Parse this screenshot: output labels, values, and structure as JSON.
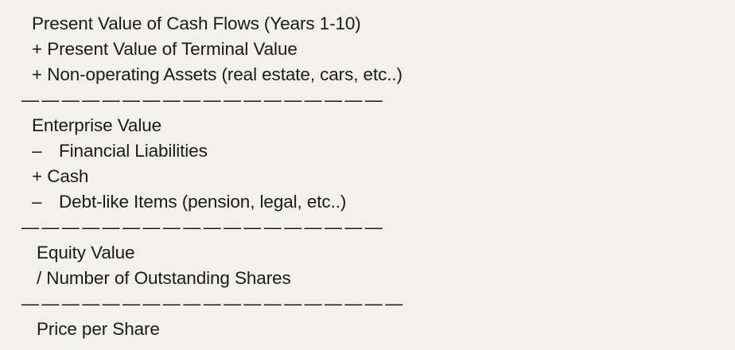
{
  "section1": {
    "line1": "Present Value of Cash Flows (Years 1-10)",
    "line2": "+ Present Value of Terminal Value",
    "line3": "+ Non-operating Assets (real estate, cars, etc..)"
  },
  "separator1": "——————————————————",
  "section2": {
    "line1": "Enterprise Value",
    "line2_op": "–",
    "line2_text": "Financial Liabilities",
    "line3": "+ Cash",
    "line4_op": "–",
    "line4_text": "Debt-like Items (pension, legal, etc..)"
  },
  "separator2": "——————————————————",
  "section3": {
    "line1": "Equity Value",
    "line2": "/ Number of Outstanding Shares"
  },
  "separator3": "———————————————————",
  "result": "Price per Share"
}
